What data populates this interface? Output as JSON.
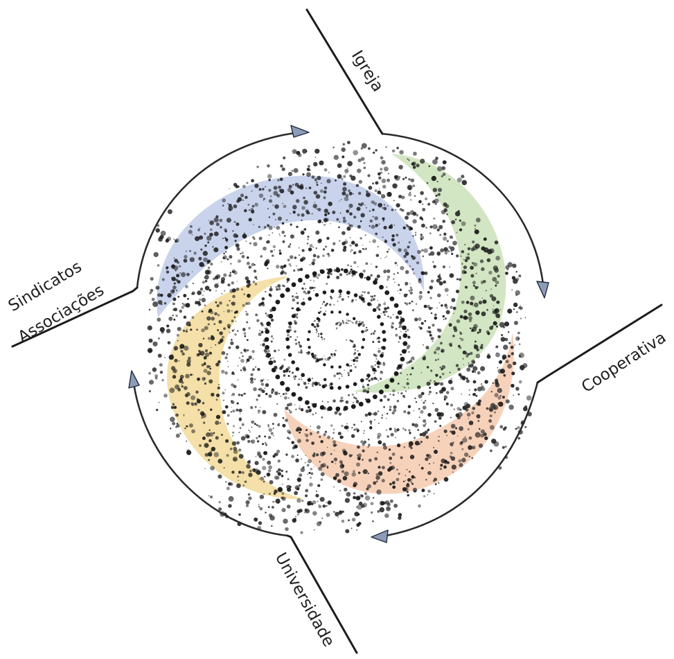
{
  "labels": {
    "igreja": "Igreja",
    "cooperativa": "Cooperativa",
    "universidade": "Universidade",
    "sindicatos": "Sindicatos",
    "associacoes": "Associações"
  },
  "colors": {
    "blue_band": "#c9d3ec",
    "green_band": "#d3e6c3",
    "orange_band": "#f7d2bb",
    "yellow_band": "#f4e0a8",
    "ink": "#1c1c1c"
  }
}
